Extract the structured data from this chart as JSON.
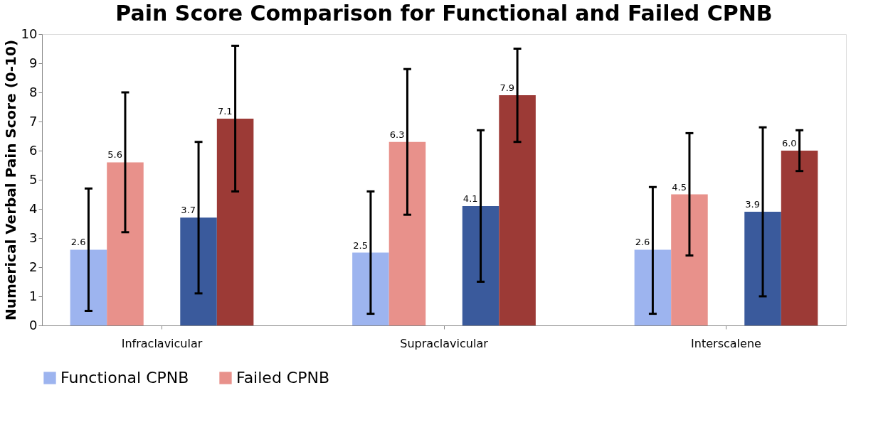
{
  "chart_data": {
    "type": "bar",
    "title": "Pain Score Comparison for Functional and Failed CPNB",
    "ylabel": "Numerical Verbal Pain Score (0-10)",
    "categories": [
      "Infraclavicular",
      "Supraclavicular",
      "Interscalene"
    ],
    "series": [
      {
        "name": "Functional CPNB",
        "color": "#9db4ef",
        "values": [
          2.6,
          2.5,
          2.6
        ],
        "value_labels": [
          "2.6",
          "2.5",
          "2.6"
        ],
        "errors": [
          [
            0.5,
            4.7
          ],
          [
            0.4,
            4.6
          ],
          [
            0.4,
            4.75
          ]
        ]
      },
      {
        "name": "Failed CPNB",
        "color": "#e8918b",
        "values": [
          5.6,
          6.3,
          4.5
        ],
        "value_labels": [
          "5.6",
          "6.3",
          "4.5"
        ],
        "errors": [
          [
            3.2,
            8.0
          ],
          [
            3.8,
            8.8
          ],
          [
            2.4,
            6.6
          ]
        ]
      },
      {
        "color": "#3a5a9c",
        "values": [
          3.7,
          4.1,
          3.9
        ],
        "value_labels": [
          "3.7",
          "4.1",
          "3.9"
        ],
        "errors": [
          [
            1.1,
            6.3
          ],
          [
            1.5,
            6.7
          ],
          [
            1.0,
            6.8
          ]
        ]
      },
      {
        "color": "#9c3a36",
        "values": [
          7.1,
          7.9,
          6.0
        ],
        "value_labels": [
          "7.1",
          "7.9",
          "6.0"
        ],
        "errors": [
          [
            4.6,
            9.6
          ],
          [
            6.3,
            9.5
          ],
          [
            5.3,
            6.7
          ]
        ]
      }
    ],
    "ylim": [
      0,
      10
    ],
    "yticks": [
      0,
      1,
      2,
      3,
      4,
      5,
      6,
      7,
      8,
      9,
      10
    ],
    "grid": false,
    "legend": "bottom"
  }
}
